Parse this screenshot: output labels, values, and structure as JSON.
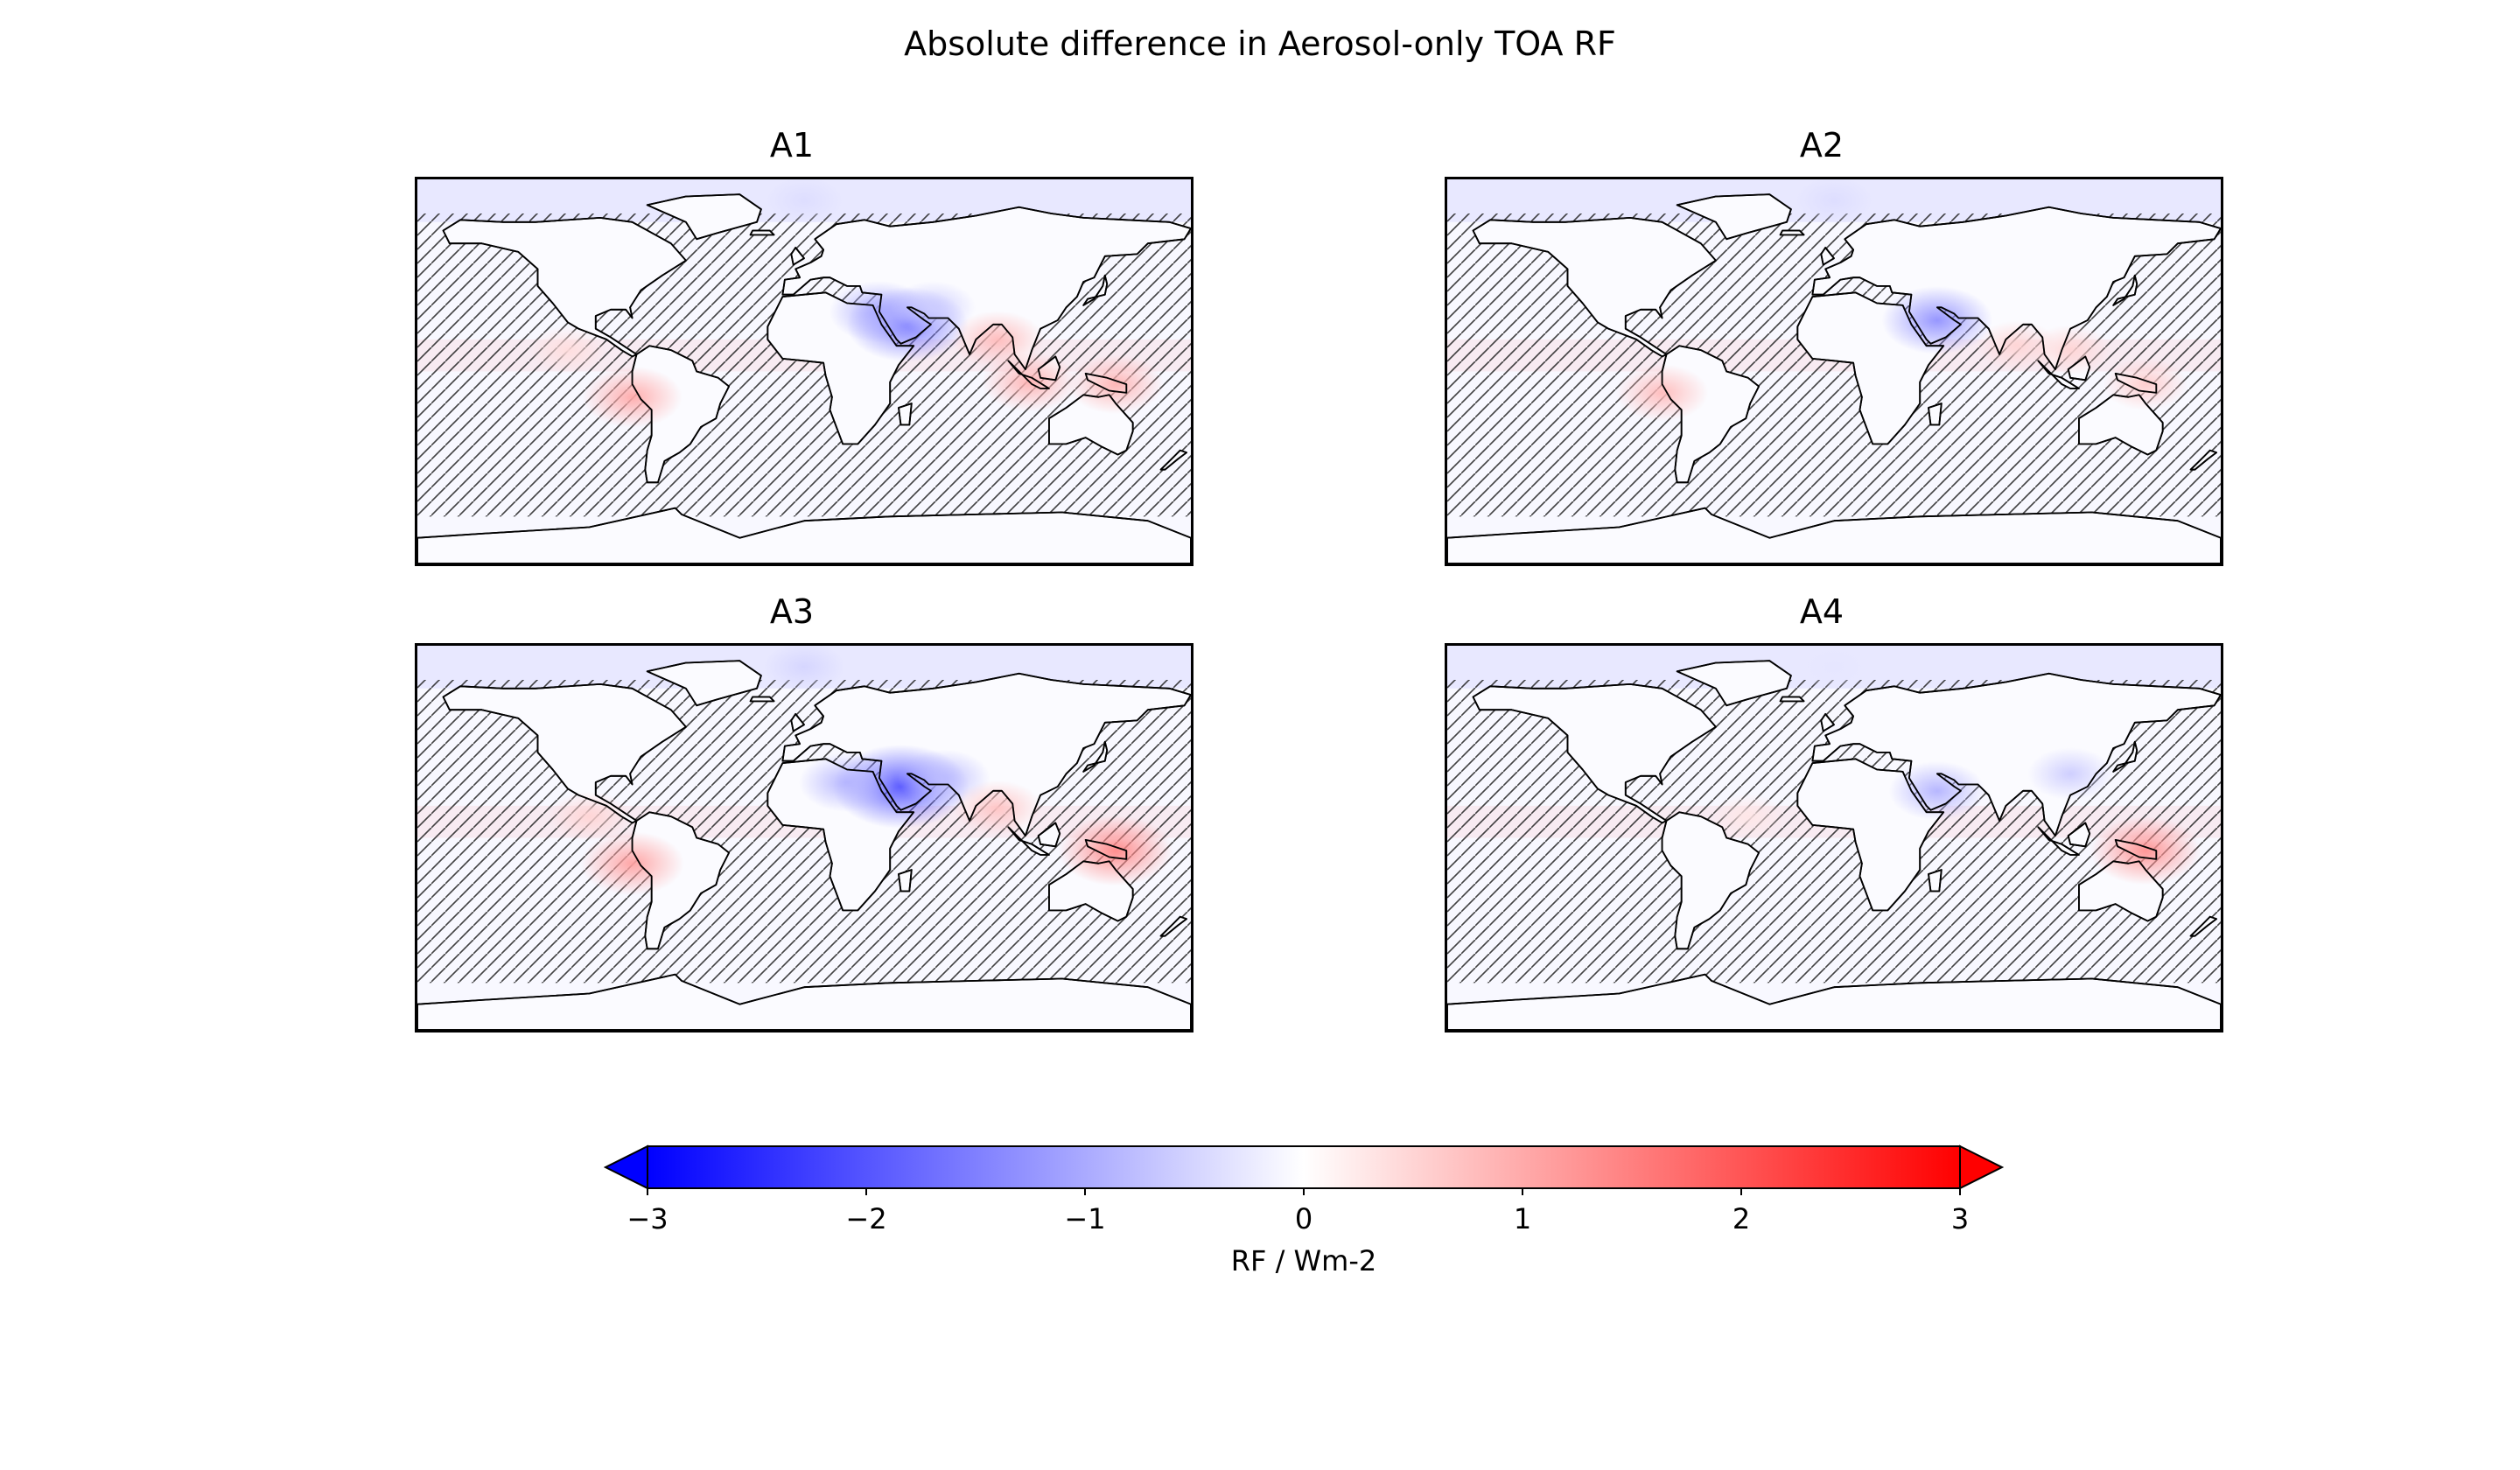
{
  "chart_data": {
    "type": "heatmap",
    "title": "Absolute difference in Aerosol-only TOA RF",
    "panels": [
      {
        "name": "A1",
        "hotspots": [
          {
            "lon": 48,
            "lat": 22,
            "value": -1.6
          },
          {
            "lon": 35,
            "lat": 28,
            "value": -1.0
          },
          {
            "lon": 60,
            "lat": 30,
            "value": -0.6
          },
          {
            "lon": -80,
            "lat": -12,
            "value": 1.0
          },
          {
            "lon": 90,
            "lat": 15,
            "value": 0.8
          },
          {
            "lon": 105,
            "lat": -5,
            "value": 0.9
          },
          {
            "lon": 145,
            "lat": -6,
            "value": 0.9
          },
          {
            "lon": -110,
            "lat": 10,
            "value": 0.4
          },
          {
            "lon": 0,
            "lat": 80,
            "value": -0.4
          }
        ]
      },
      {
        "name": "A2",
        "hotspots": [
          {
            "lon": 48,
            "lat": 24,
            "value": -1.3
          },
          {
            "lon": -80,
            "lat": -10,
            "value": 0.8
          },
          {
            "lon": 85,
            "lat": 12,
            "value": 0.5
          },
          {
            "lon": 110,
            "lat": 10,
            "value": 0.5
          },
          {
            "lon": 145,
            "lat": -6,
            "value": 0.6
          },
          {
            "lon": 0,
            "lat": 80,
            "value": -0.4
          }
        ]
      },
      {
        "name": "A3",
        "hotspots": [
          {
            "lon": 45,
            "lat": 24,
            "value": -2.0
          },
          {
            "lon": 20,
            "lat": 26,
            "value": -0.9
          },
          {
            "lon": 65,
            "lat": 28,
            "value": -0.8
          },
          {
            "lon": -80,
            "lat": -12,
            "value": 1.1
          },
          {
            "lon": 90,
            "lat": 14,
            "value": 0.7
          },
          {
            "lon": 145,
            "lat": -6,
            "value": 1.4
          },
          {
            "lon": -100,
            "lat": 10,
            "value": 0.5
          },
          {
            "lon": 0,
            "lat": 80,
            "value": -0.5
          }
        ]
      },
      {
        "name": "A4",
        "hotspots": [
          {
            "lon": 48,
            "lat": 22,
            "value": -0.9
          },
          {
            "lon": 110,
            "lat": 30,
            "value": -0.6
          },
          {
            "lon": 145,
            "lat": -6,
            "value": 1.3
          },
          {
            "lon": -40,
            "lat": 10,
            "value": 0.3
          },
          {
            "lon": 0,
            "lat": 80,
            "value": -0.3
          }
        ]
      }
    ],
    "colorbar": {
      "label": "RF / Wm-2",
      "min": -3,
      "max": 3,
      "colormap": [
        "#0000ff",
        "#ffffff",
        "#ff0000"
      ],
      "extend": "both",
      "ticks": [
        -3,
        -2,
        -1,
        0,
        1,
        2,
        3
      ],
      "tick_labels": [
        "−3",
        "−2",
        "−1",
        "0",
        "1",
        "2",
        "3"
      ]
    },
    "projection": "PlateCarree",
    "grid": false,
    "hatching": "diagonal stippling over non-significant regions"
  }
}
